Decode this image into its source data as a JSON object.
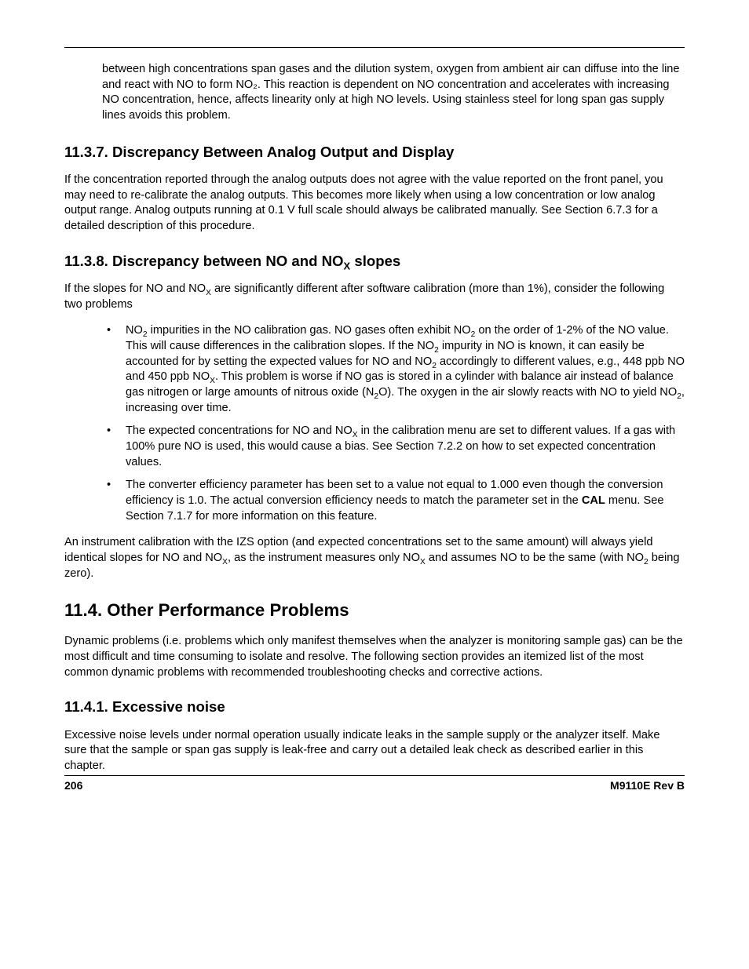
{
  "intro_paragraph": "between high concentrations span gases and the dilution system, oxygen from ambient air can diffuse into the line and react with NO to form NO₂. This reaction is dependent on NO concentration and accelerates with increasing NO concentration, hence, affects linearity only at high NO levels. Using stainless steel for long span gas supply lines avoids this problem.",
  "sec_11_3_7": {
    "heading": "11.3.7. Discrepancy Between Analog Output and Display",
    "body": "If the concentration reported through the analog outputs does not agree with the value reported on the front panel, you may need to re-calibrate the analog outputs. This becomes more likely when using a low concentration or low analog output range. Analog outputs running at 0.1 V full scale should always be calibrated manually. See Section 6.7.3 for a detailed description of this procedure."
  },
  "sec_11_3_8": {
    "heading_pre": "11.3.8. Discrepancy between NO and NO",
    "heading_sub": "X",
    "heading_post": " slopes",
    "p1_pre": "If the slopes for NO and NO",
    "p1_sub": "X",
    "p1_post": " are significantly different after software calibration (more than 1%), consider the following two problems",
    "bullets": [
      {
        "html": "NO<sub>2</sub> impurities in the NO calibration gas. NO gases often exhibit NO<sub>2</sub> on the order of 1-2% of the NO value. This will cause differences in the calibration slopes. If the NO<sub>2</sub> impurity in NO is known, it can easily be accounted for by setting the expected values for NO and NO<sub>2</sub> accordingly to different values, e.g., 448 ppb NO and 450 ppb NO<sub>X</sub>. This problem is worse if NO gas is stored in a cylinder with balance air instead of balance gas nitrogen or large amounts of nitrous oxide (N<sub>2</sub>O). The oxygen in the air slowly reacts with NO to yield NO<sub>2</sub>, increasing over time."
      },
      {
        "html": "The expected concentrations for NO and NO<sub>X</sub> in the calibration menu are set to different values. If a gas with 100% pure NO is used, this would cause a bias. See Section 7.2.2 on how to set expected concentration values."
      },
      {
        "html": "The converter efficiency parameter has been set to a value not equal to 1.000 even though the conversion efficiency is 1.0. The actual conversion efficiency needs to match the parameter set in the <span class=\"bold\">CAL</span> menu. See Section 7.1.7 for more information on this feature."
      }
    ],
    "p2_html": "An instrument calibration with the IZS option (and expected concentrations set to the same amount) will always yield identical slopes for NO and NO<sub>X</sub>, as the instrument measures only NO<sub>X</sub> and assumes NO to be the same (with NO<sub>2</sub> being zero)."
  },
  "sec_11_4": {
    "heading": "11.4. Other Performance Problems",
    "body": "Dynamic problems (i.e. problems which only manifest themselves when the analyzer is monitoring sample gas) can be the most difficult and time consuming to isolate and resolve. The following section provides an itemized list of the most common dynamic problems with recommended troubleshooting checks and corrective actions."
  },
  "sec_11_4_1": {
    "heading": "11.4.1. Excessive noise",
    "body": "Excessive noise levels under normal operation usually indicate leaks in the sample supply or the analyzer itself. Make sure that the sample or span gas supply is leak-free and carry out a detailed leak check as described earlier in this chapter."
  },
  "footer": {
    "page": "206",
    "doc": "M9110E Rev B"
  }
}
